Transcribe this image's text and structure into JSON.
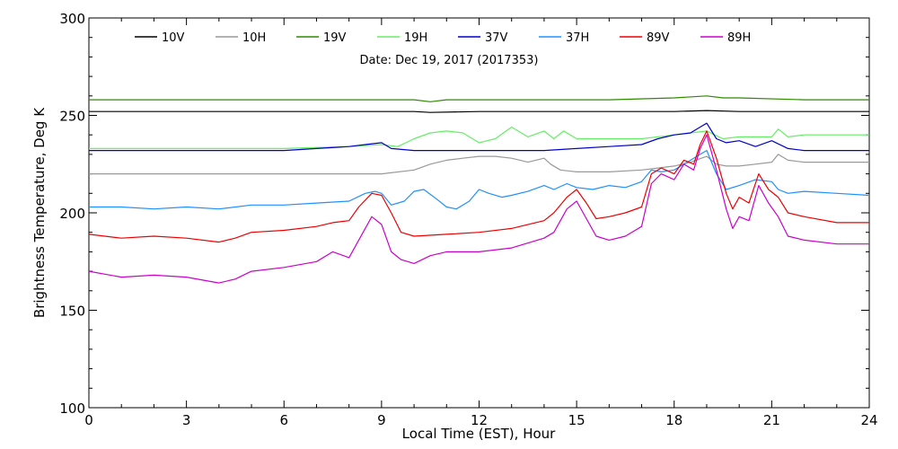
{
  "chart_data": {
    "type": "line",
    "title": "Date: Dec 19, 2017 (2017353)",
    "xlabel": "Local Time (EST), Hour",
    "ylabel": "Brightness Temperature, Deg K",
    "xlim": [
      0,
      24
    ],
    "ylim": [
      100,
      300
    ],
    "x_ticks": [
      0,
      3,
      6,
      9,
      12,
      15,
      18,
      21,
      24
    ],
    "y_ticks": [
      100,
      150,
      200,
      250,
      300
    ],
    "grid": false,
    "legend_position": "top",
    "series": [
      {
        "name": "10V",
        "color": "#000000",
        "points": [
          [
            0,
            252
          ],
          [
            2,
            252
          ],
          [
            4,
            252
          ],
          [
            6,
            252
          ],
          [
            8,
            252
          ],
          [
            10,
            252
          ],
          [
            10.5,
            251.5
          ],
          [
            12,
            252
          ],
          [
            14,
            252
          ],
          [
            16,
            252
          ],
          [
            18,
            252
          ],
          [
            19,
            252.5
          ],
          [
            20,
            252
          ],
          [
            21,
            252
          ],
          [
            22,
            252
          ],
          [
            24,
            252
          ]
        ]
      },
      {
        "name": "10H",
        "color": "#999999",
        "points": [
          [
            0,
            220
          ],
          [
            2,
            220
          ],
          [
            4,
            220
          ],
          [
            6,
            220
          ],
          [
            8,
            220
          ],
          [
            9,
            220
          ],
          [
            10,
            222
          ],
          [
            10.5,
            225
          ],
          [
            11,
            227
          ],
          [
            11.5,
            228
          ],
          [
            12,
            229
          ],
          [
            12.5,
            229
          ],
          [
            13,
            228
          ],
          [
            13.5,
            226
          ],
          [
            14,
            228
          ],
          [
            14.2,
            225
          ],
          [
            14.5,
            222
          ],
          [
            15,
            221
          ],
          [
            16,
            221
          ],
          [
            17,
            222
          ],
          [
            17.5,
            223
          ],
          [
            18,
            224
          ],
          [
            18.5,
            226
          ],
          [
            19,
            229
          ],
          [
            19.3,
            225
          ],
          [
            19.6,
            224
          ],
          [
            20,
            224
          ],
          [
            20.5,
            225
          ],
          [
            21,
            226
          ],
          [
            21.2,
            230
          ],
          [
            21.5,
            227
          ],
          [
            22,
            226
          ],
          [
            24,
            226
          ]
        ]
      },
      {
        "name": "19V",
        "color": "#2e8b00",
        "points": [
          [
            0,
            258
          ],
          [
            2,
            258
          ],
          [
            4,
            258
          ],
          [
            6,
            258
          ],
          [
            8,
            258
          ],
          [
            10,
            258
          ],
          [
            10.5,
            257
          ],
          [
            11,
            258
          ],
          [
            12,
            258
          ],
          [
            14,
            258
          ],
          [
            16,
            258
          ],
          [
            18,
            259
          ],
          [
            19,
            260
          ],
          [
            19.5,
            259
          ],
          [
            20,
            259
          ],
          [
            22,
            258
          ],
          [
            24,
            258
          ]
        ]
      },
      {
        "name": "19H",
        "color": "#66ee66",
        "points": [
          [
            0,
            233
          ],
          [
            2,
            233
          ],
          [
            4,
            233
          ],
          [
            6,
            233
          ],
          [
            8,
            234
          ],
          [
            9,
            235
          ],
          [
            9.5,
            234
          ],
          [
            10,
            238
          ],
          [
            10.5,
            241
          ],
          [
            11,
            242
          ],
          [
            11.5,
            241
          ],
          [
            12,
            236
          ],
          [
            12.5,
            238
          ],
          [
            13,
            244
          ],
          [
            13.5,
            239
          ],
          [
            14,
            242
          ],
          [
            14.3,
            238
          ],
          [
            14.6,
            242
          ],
          [
            15,
            238
          ],
          [
            16,
            238
          ],
          [
            17,
            238
          ],
          [
            18,
            240
          ],
          [
            18.5,
            241
          ],
          [
            19,
            242
          ],
          [
            19.5,
            238
          ],
          [
            20,
            239
          ],
          [
            21,
            239
          ],
          [
            21.2,
            243
          ],
          [
            21.5,
            239
          ],
          [
            22,
            240
          ],
          [
            24,
            240
          ]
        ]
      },
      {
        "name": "37V",
        "color": "#0000cc",
        "points": [
          [
            0,
            232
          ],
          [
            2,
            232
          ],
          [
            4,
            232
          ],
          [
            6,
            232
          ],
          [
            7,
            233
          ],
          [
            8,
            234
          ],
          [
            8.5,
            235
          ],
          [
            9,
            236
          ],
          [
            9.3,
            233
          ],
          [
            10,
            232
          ],
          [
            12,
            232
          ],
          [
            14,
            232
          ],
          [
            15,
            233
          ],
          [
            16,
            234
          ],
          [
            17,
            235
          ],
          [
            17.5,
            238
          ],
          [
            18,
            240
          ],
          [
            18.5,
            241
          ],
          [
            18.8,
            244
          ],
          [
            19,
            246
          ],
          [
            19.3,
            238
          ],
          [
            19.6,
            236
          ],
          [
            20,
            237
          ],
          [
            20.5,
            234
          ],
          [
            21,
            237
          ],
          [
            21.5,
            233
          ],
          [
            22,
            232
          ],
          [
            24,
            232
          ]
        ]
      },
      {
        "name": "37H",
        "color": "#1e90ff",
        "points": [
          [
            0,
            203
          ],
          [
            1,
            203
          ],
          [
            2,
            202
          ],
          [
            3,
            203
          ],
          [
            4,
            202
          ],
          [
            5,
            204
          ],
          [
            6,
            204
          ],
          [
            7,
            205
          ],
          [
            8,
            206
          ],
          [
            8.5,
            210
          ],
          [
            8.8,
            211
          ],
          [
            9,
            210
          ],
          [
            9.3,
            204
          ],
          [
            9.7,
            206
          ],
          [
            10,
            211
          ],
          [
            10.3,
            212
          ],
          [
            10.7,
            207
          ],
          [
            11,
            203
          ],
          [
            11.3,
            202
          ],
          [
            11.7,
            206
          ],
          [
            12,
            212
          ],
          [
            12.3,
            210
          ],
          [
            12.7,
            208
          ],
          [
            13,
            209
          ],
          [
            13.5,
            211
          ],
          [
            14,
            214
          ],
          [
            14.3,
            212
          ],
          [
            14.7,
            215
          ],
          [
            15,
            213
          ],
          [
            15.5,
            212
          ],
          [
            16,
            214
          ],
          [
            16.5,
            213
          ],
          [
            17,
            216
          ],
          [
            17.3,
            222
          ],
          [
            17.6,
            221
          ],
          [
            18,
            222
          ],
          [
            18.5,
            227
          ],
          [
            18.8,
            230
          ],
          [
            19,
            232
          ],
          [
            19.3,
            220
          ],
          [
            19.6,
            212
          ],
          [
            20,
            214
          ],
          [
            20.5,
            217
          ],
          [
            21,
            216
          ],
          [
            21.2,
            212
          ],
          [
            21.5,
            210
          ],
          [
            22,
            211
          ],
          [
            23,
            210
          ],
          [
            24,
            209
          ]
        ]
      },
      {
        "name": "89V",
        "color": "#ee0000",
        "points": [
          [
            0,
            189
          ],
          [
            1,
            187
          ],
          [
            2,
            188
          ],
          [
            3,
            187
          ],
          [
            4,
            185
          ],
          [
            4.5,
            187
          ],
          [
            5,
            190
          ],
          [
            6,
            191
          ],
          [
            7,
            193
          ],
          [
            7.5,
            195
          ],
          [
            8,
            196
          ],
          [
            8.3,
            203
          ],
          [
            8.7,
            210
          ],
          [
            9,
            209
          ],
          [
            9.3,
            200
          ],
          [
            9.6,
            190
          ],
          [
            10,
            188
          ],
          [
            11,
            189
          ],
          [
            12,
            190
          ],
          [
            13,
            192
          ],
          [
            14,
            196
          ],
          [
            14.3,
            200
          ],
          [
            14.7,
            208
          ],
          [
            15,
            212
          ],
          [
            15.3,
            205
          ],
          [
            15.6,
            197
          ],
          [
            16,
            198
          ],
          [
            16.5,
            200
          ],
          [
            17,
            203
          ],
          [
            17.3,
            220
          ],
          [
            17.6,
            223
          ],
          [
            18,
            220
          ],
          [
            18.3,
            227
          ],
          [
            18.6,
            225
          ],
          [
            18.8,
            235
          ],
          [
            19,
            242
          ],
          [
            19.3,
            228
          ],
          [
            19.6,
            210
          ],
          [
            19.8,
            202
          ],
          [
            20,
            208
          ],
          [
            20.3,
            205
          ],
          [
            20.6,
            220
          ],
          [
            20.9,
            212
          ],
          [
            21.2,
            208
          ],
          [
            21.5,
            200
          ],
          [
            22,
            198
          ],
          [
            23,
            195
          ],
          [
            24,
            195
          ]
        ]
      },
      {
        "name": "89H",
        "color": "#cc00cc",
        "points": [
          [
            0,
            170
          ],
          [
            1,
            167
          ],
          [
            2,
            168
          ],
          [
            3,
            167
          ],
          [
            4,
            164
          ],
          [
            4.5,
            166
          ],
          [
            5,
            170
          ],
          [
            6,
            172
          ],
          [
            7,
            175
          ],
          [
            7.5,
            180
          ],
          [
            8,
            177
          ],
          [
            8.3,
            186
          ],
          [
            8.7,
            198
          ],
          [
            9,
            194
          ],
          [
            9.3,
            180
          ],
          [
            9.6,
            176
          ],
          [
            10,
            174
          ],
          [
            10.5,
            178
          ],
          [
            11,
            180
          ],
          [
            12,
            180
          ],
          [
            13,
            182
          ],
          [
            14,
            187
          ],
          [
            14.3,
            190
          ],
          [
            14.7,
            202
          ],
          [
            15,
            206
          ],
          [
            15.3,
            197
          ],
          [
            15.6,
            188
          ],
          [
            16,
            186
          ],
          [
            16.5,
            188
          ],
          [
            17,
            193
          ],
          [
            17.3,
            215
          ],
          [
            17.6,
            220
          ],
          [
            18,
            217
          ],
          [
            18.3,
            225
          ],
          [
            18.6,
            222
          ],
          [
            18.8,
            233
          ],
          [
            19,
            240
          ],
          [
            19.3,
            222
          ],
          [
            19.6,
            202
          ],
          [
            19.8,
            192
          ],
          [
            20,
            198
          ],
          [
            20.3,
            196
          ],
          [
            20.6,
            214
          ],
          [
            20.9,
            205
          ],
          [
            21.2,
            198
          ],
          [
            21.5,
            188
          ],
          [
            22,
            186
          ],
          [
            23,
            184
          ],
          [
            24,
            184
          ]
        ]
      }
    ]
  }
}
